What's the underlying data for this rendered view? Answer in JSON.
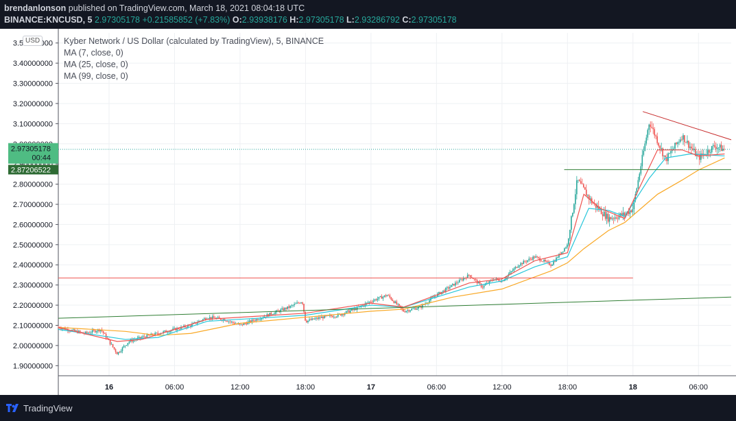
{
  "header": {
    "publisher": "brendanlonson",
    "published_text": "published on TradingView.com, March 18, 2021 08:04:18 UTC",
    "symbol": "BINANCE:KNCUSD, 5",
    "price": "2.97305178",
    "change": "+0.21585852 (+7.83%)",
    "o_label": "O:",
    "o_value": "2.93938176",
    "h_label": "H:",
    "h_value": "2.97305178",
    "l_label": "L:",
    "l_value": "2.93286792",
    "c_label": "C:",
    "c_value": "2.97305178"
  },
  "legend": {
    "title": "Kyber Network / US Dollar (calculated by TradingView), 5, BINANCE",
    "ma1": "MA (7, close, 0)",
    "ma2": "MA (25, close, 0)",
    "ma3": "MA (99, close, 0)"
  },
  "currency_badge": "USD",
  "price_tags": {
    "last": "2.97305178",
    "countdown": "00:44",
    "level": "2.87206522"
  },
  "footer": {
    "brand": "TradingView"
  },
  "colors": {
    "up": "#26a69a",
    "down": "#ef5350",
    "ma7": "#ef5350",
    "ma25": "#26c6da",
    "ma99": "#f9a825",
    "trendline": "#2e7d32",
    "resistance_red": "#ef5350",
    "resistance_down": "#c62828"
  },
  "chart_data": {
    "type": "candlestick",
    "ylim": [
      1.85,
      3.55
    ],
    "y_ticks": [
      1.9,
      2.0,
      2.1,
      2.2,
      2.3,
      2.4,
      2.5,
      2.6,
      2.7,
      2.8,
      2.9,
      3.0,
      3.1,
      3.2,
      3.3,
      3.4,
      3.5
    ],
    "y_tick_labels": [
      "1.90000000",
      "2.00000000",
      "2.10000000",
      "2.20000000",
      "2.30000000",
      "2.40000000",
      "2.50000000",
      "2.60000000",
      "2.70000000",
      "2.80000000",
      "2.90000000",
      "3.00000000",
      "3.10000000",
      "3.20000000",
      "3.30000000",
      "3.40000000",
      "3.50000000"
    ],
    "x_range_hours": [
      -3.1,
      38
    ],
    "x_ticks": [
      {
        "h": 0,
        "label": "16",
        "bold": true
      },
      {
        "h": 4,
        "label": "06:00"
      },
      {
        "h": 8,
        "label": "12:00"
      },
      {
        "h": 12,
        "label": "18:00"
      },
      {
        "h": 16,
        "label": "17",
        "bold": true
      },
      {
        "h": 20,
        "label": "06:00"
      },
      {
        "h": 24,
        "label": "12:00"
      },
      {
        "h": 28,
        "label": "18:00"
      },
      {
        "h": 32,
        "label": "18",
        "bold": true
      },
      {
        "h": 36,
        "label": "06:00"
      }
    ],
    "price_path": [
      [
        -3.1,
        2.09
      ],
      [
        -1.5,
        2.06
      ],
      [
        -0.5,
        2.08
      ],
      [
        0.5,
        1.96
      ],
      [
        1.2,
        2.02
      ],
      [
        2,
        2.04
      ],
      [
        3,
        2.06
      ],
      [
        4,
        2.08
      ],
      [
        5,
        2.1
      ],
      [
        6,
        2.14
      ],
      [
        7,
        2.13
      ],
      [
        8,
        2.1
      ],
      [
        9,
        2.13
      ],
      [
        10,
        2.16
      ],
      [
        11,
        2.19
      ],
      [
        11.8,
        2.22
      ],
      [
        12,
        2.12
      ],
      [
        13,
        2.14
      ],
      [
        14,
        2.15
      ],
      [
        15,
        2.18
      ],
      [
        16,
        2.22
      ],
      [
        17,
        2.25
      ],
      [
        18,
        2.17
      ],
      [
        19,
        2.19
      ],
      [
        20,
        2.25
      ],
      [
        21,
        2.3
      ],
      [
        22,
        2.35
      ],
      [
        22.8,
        2.29
      ],
      [
        23.5,
        2.33
      ],
      [
        24,
        2.32
      ],
      [
        25,
        2.4
      ],
      [
        26,
        2.44
      ],
      [
        27,
        2.4
      ],
      [
        28,
        2.5
      ],
      [
        28.6,
        2.82
      ],
      [
        29.5,
        2.71
      ],
      [
        30.5,
        2.63
      ],
      [
        31.5,
        2.65
      ],
      [
        32,
        2.68
      ],
      [
        32.5,
        2.9
      ],
      [
        33,
        3.11
      ],
      [
        34,
        2.92
      ],
      [
        35,
        3.04
      ],
      [
        36,
        2.93
      ],
      [
        37,
        2.99
      ],
      [
        37.6,
        2.97
      ]
    ],
    "ma7": [
      [
        -3.1,
        2.09
      ],
      [
        0.5,
        2.02
      ],
      [
        2,
        2.03
      ],
      [
        6,
        2.13
      ],
      [
        10,
        2.15
      ],
      [
        12,
        2.16
      ],
      [
        16,
        2.21
      ],
      [
        18,
        2.19
      ],
      [
        22,
        2.31
      ],
      [
        24,
        2.33
      ],
      [
        26,
        2.42
      ],
      [
        28,
        2.46
      ],
      [
        29,
        2.75
      ],
      [
        30,
        2.68
      ],
      [
        31.5,
        2.63
      ],
      [
        32.5,
        2.8
      ],
      [
        33.5,
        2.97
      ],
      [
        35,
        2.97
      ],
      [
        36,
        2.94
      ],
      [
        37.6,
        2.95
      ]
    ],
    "ma25": [
      [
        -3.1,
        2.08
      ],
      [
        1,
        2.03
      ],
      [
        3,
        2.04
      ],
      [
        6,
        2.12
      ],
      [
        10,
        2.14
      ],
      [
        12,
        2.15
      ],
      [
        16,
        2.2
      ],
      [
        18,
        2.19
      ],
      [
        22,
        2.29
      ],
      [
        24,
        2.32
      ],
      [
        26,
        2.39
      ],
      [
        28,
        2.44
      ],
      [
        29.3,
        2.68
      ],
      [
        30.5,
        2.67
      ],
      [
        31.5,
        2.64
      ],
      [
        33,
        2.83
      ],
      [
        34,
        2.93
      ],
      [
        35.5,
        2.95
      ],
      [
        37.6,
        2.94
      ]
    ],
    "ma99": [
      [
        -3.1,
        2.09
      ],
      [
        1,
        2.07
      ],
      [
        3,
        2.05
      ],
      [
        5,
        2.06
      ],
      [
        8,
        2.11
      ],
      [
        12,
        2.14
      ],
      [
        16,
        2.17
      ],
      [
        18,
        2.18
      ],
      [
        21,
        2.24
      ],
      [
        24,
        2.28
      ],
      [
        27,
        2.37
      ],
      [
        28,
        2.41
      ],
      [
        29,
        2.48
      ],
      [
        30.5,
        2.57
      ],
      [
        31.5,
        2.61
      ],
      [
        32.5,
        2.68
      ],
      [
        33.5,
        2.75
      ],
      [
        35,
        2.82
      ],
      [
        36,
        2.87
      ],
      [
        37.6,
        2.93
      ]
    ],
    "drawings": [
      {
        "name": "ascending-trendline",
        "from": [
          -3.1,
          2.135
        ],
        "to": [
          38,
          2.24
        ],
        "color": "#2e7d32"
      },
      {
        "name": "resistance-level-red",
        "from": [
          -3.1,
          2.335
        ],
        "to": [
          32,
          2.335
        ],
        "color": "#ef5350"
      },
      {
        "name": "support-level-green",
        "from": [
          27.8,
          2.872
        ],
        "to": [
          38,
          2.872
        ],
        "color": "#2e7d32"
      },
      {
        "name": "descending-trendline-red",
        "from": [
          32.6,
          3.16
        ],
        "to": [
          38,
          3.02
        ],
        "color": "#c62828"
      }
    ],
    "last_price": 2.97305178,
    "level_price": 2.87206522
  }
}
